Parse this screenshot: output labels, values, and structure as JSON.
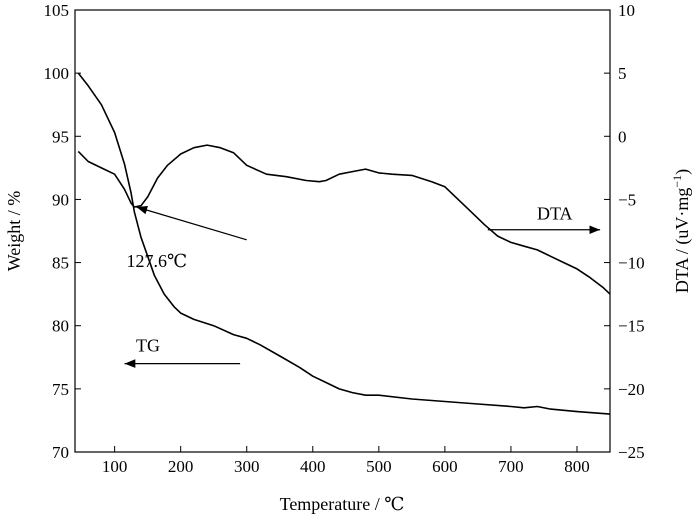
{
  "chart_data": {
    "type": "line",
    "xlabel": "Temperature / ℃",
    "ylabel_left": "Weight / %",
    "ylabel_right_main": "DTA / (uV·mg",
    "ylabel_right_sup": "−1",
    "ylabel_right_end": ")",
    "xlim": [
      40,
      850
    ],
    "ylim_left": [
      70,
      105
    ],
    "ylim_right": [
      -25,
      10
    ],
    "x_ticks": [
      100,
      200,
      300,
      400,
      500,
      600,
      700,
      800
    ],
    "x_tick_labels": [
      "100",
      "200",
      "300",
      "400",
      "500",
      "600",
      "700",
      "800"
    ],
    "y_left_ticks": [
      70,
      75,
      80,
      85,
      90,
      95,
      100,
      105
    ],
    "y_left_tick_labels": [
      "70",
      "75",
      "80",
      "85",
      "90",
      "95",
      "100",
      "105"
    ],
    "y_right_ticks": [
      -25,
      -20,
      -15,
      -10,
      -5,
      0,
      5,
      10
    ],
    "y_right_tick_labels": [
      "−25",
      "−20",
      "−15",
      "−10",
      "−5",
      "0",
      "5",
      "10"
    ],
    "grid": false,
    "series": [
      {
        "name": "TG",
        "axis": "left",
        "color": "#000000",
        "x": [
          45,
          60,
          80,
          100,
          115,
          125,
          130,
          140,
          150,
          160,
          175,
          190,
          200,
          220,
          250,
          280,
          300,
          320,
          350,
          380,
          400,
          420,
          440,
          460,
          480,
          500,
          550,
          600,
          650,
          700,
          720,
          740,
          760,
          800,
          850
        ],
        "y": [
          100.0,
          99.0,
          97.5,
          95.3,
          92.8,
          90.5,
          89.0,
          87.0,
          85.5,
          84.0,
          82.5,
          81.5,
          81.0,
          80.5,
          80.0,
          79.3,
          79.0,
          78.5,
          77.6,
          76.7,
          76.0,
          75.5,
          75.0,
          74.7,
          74.5,
          74.5,
          74.2,
          74.0,
          73.8,
          73.6,
          73.5,
          73.6,
          73.4,
          73.2,
          73.0
        ]
      },
      {
        "name": "DTA",
        "axis": "right",
        "color": "#000000",
        "x": [
          45,
          60,
          80,
          100,
          115,
          125,
          130,
          140,
          150,
          165,
          180,
          200,
          220,
          240,
          260,
          280,
          300,
          330,
          360,
          390,
          410,
          420,
          440,
          460,
          480,
          500,
          520,
          550,
          580,
          600,
          630,
          660,
          680,
          700,
          720,
          740,
          760,
          780,
          800,
          820,
          840,
          850
        ],
        "y": [
          -1.2,
          -2.0,
          -2.5,
          -3.0,
          -4.2,
          -5.3,
          -5.6,
          -5.5,
          -4.8,
          -3.3,
          -2.3,
          -1.4,
          -0.9,
          -0.7,
          -0.9,
          -1.3,
          -2.3,
          -3.0,
          -3.2,
          -3.5,
          -3.6,
          -3.5,
          -3.0,
          -2.8,
          -2.6,
          -2.9,
          -3.0,
          -3.1,
          -3.6,
          -4.0,
          -5.5,
          -7.0,
          -7.9,
          -8.4,
          -8.7,
          -9.0,
          -9.5,
          -10.0,
          -10.5,
          -11.2,
          -12.0,
          -12.5
        ]
      }
    ],
    "annotations": {
      "point_label": "127.6℃",
      "point_x": 130,
      "point_y_right": -5.6,
      "tangent_end_x": 300,
      "tangent_end_y_right": -8.2,
      "dta_label": "DTA",
      "dta_arrow_from_x": 665,
      "dta_arrow_to_x": 835,
      "dta_arrow_y_right": -7.4,
      "tg_label": "TG",
      "tg_arrow_from_x": 290,
      "tg_arrow_to_x": 115,
      "tg_arrow_y_left": 77.0
    }
  }
}
